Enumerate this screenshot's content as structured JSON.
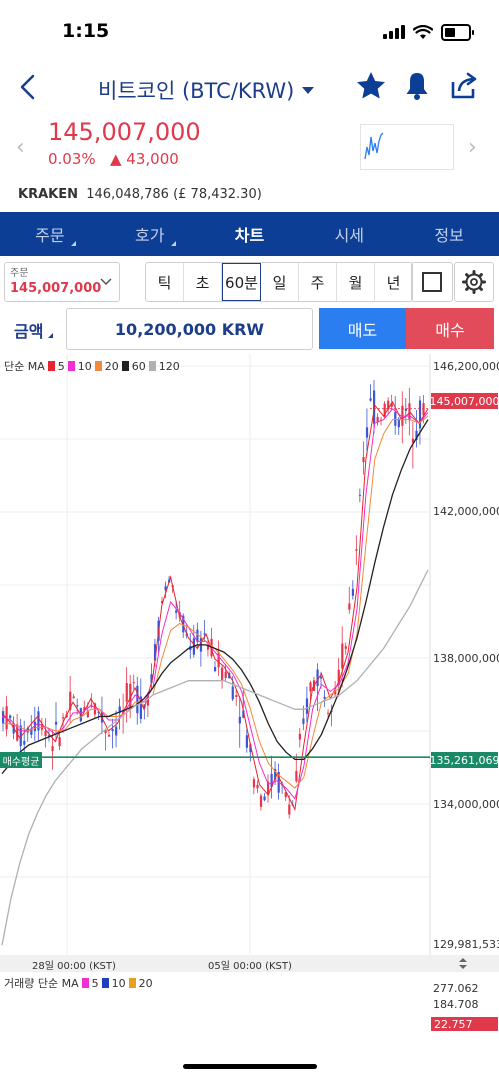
{
  "status": {
    "time": "1:15"
  },
  "header": {
    "title": "비트코인 (BTC/KRW)"
  },
  "price": {
    "current": "145,007,000",
    "change_pct": "0.03%",
    "change_amt": "▲ 43,000"
  },
  "exchange": {
    "name": "KRAKEN",
    "info": "146,048,786 (£ 78,432.30)"
  },
  "tabs": [
    "주문",
    "호가",
    "차트",
    "시세",
    "정보"
  ],
  "order": {
    "label": "주문",
    "value": "145,007,000"
  },
  "periods": [
    "틱",
    "초",
    "60분",
    "일",
    "주",
    "월",
    "년"
  ],
  "amount": {
    "label": "금액",
    "value": "10,200,000 KRW"
  },
  "buttons": {
    "sell": "매도",
    "buy": "매수"
  },
  "chart": {
    "legend_prefix": "단순 MA",
    "ma": [
      {
        "label": "5",
        "color": "#e8242d"
      },
      {
        "label": "10",
        "color": "#f02fd0"
      },
      {
        "label": "20",
        "color": "#f28a3a"
      },
      {
        "label": "60",
        "color": "#222222"
      },
      {
        "label": "120",
        "color": "#b0b0b0"
      }
    ],
    "y_labels": [
      "146,200,000",
      "142,000,000",
      "138,000,000",
      "134,000,000",
      "129,981,533"
    ],
    "price_tag": "145,007,000",
    "avg_label": "매수평균",
    "avg_value": "135,261,069",
    "x_labels": [
      "28일 00:00 (KST)",
      "05일 00:00 (KST)"
    ]
  },
  "volume": {
    "legend_prefix": "거래량 단순 MA",
    "ma": [
      {
        "label": "5",
        "color": "#f02fd0"
      },
      {
        "label": "10",
        "color": "#1f3fbf"
      },
      {
        "label": "20",
        "color": "#e6a020"
      }
    ],
    "y_labels": [
      "277.062",
      "184.708"
    ],
    "tag": "22.757"
  },
  "chart_data": {
    "type": "line",
    "title": "",
    "y_ticks": [
      146200000,
      142000000,
      138000000,
      134000000,
      129981533
    ],
    "ylim": [
      129981533,
      146200000
    ],
    "current_price": 145007000,
    "average_buy_price": 135261069,
    "series": [
      {
        "name": "5",
        "values": [
          136500000,
          136200000,
          135800000,
          136100000,
          136400000,
          136000000,
          135700000,
          136300000,
          136800000,
          136400000,
          136900000,
          136500000,
          136000000,
          136200000,
          136700000,
          137200000,
          136600000,
          137500000,
          139500000,
          140300000,
          139200000,
          138600000,
          138300000,
          138700000,
          138000000,
          137800000,
          137400000,
          136800000,
          135600000,
          134500000,
          134200000,
          134800000,
          134300000,
          133800000,
          135600000,
          137200000,
          137600000,
          136900000,
          137400000,
          138200000,
          140000000,
          143600000,
          145100000,
          144800000,
          145200000,
          144700000,
          144900000,
          144600000,
          145000000
        ]
      },
      {
        "name": "10",
        "values": [
          136400000,
          136300000,
          136000000,
          136000000,
          136200000,
          136100000,
          135900000,
          136100000,
          136500000,
          136500000,
          136700000,
          136600000,
          136300000,
          136300000,
          136600000,
          137000000,
          136800000,
          137200000,
          138700000,
          139600000,
          139300000,
          138900000,
          138500000,
          138500000,
          138200000,
          137900000,
          137600000,
          137100000,
          136100000,
          135100000,
          134500000,
          134600000,
          134400000,
          134100000,
          135000000,
          136600000,
          137300000,
          137100000,
          137300000,
          137900000,
          139400000,
          142600000,
          144600000,
          144700000,
          145000000,
          144800000,
          144800000,
          144600000,
          144900000
        ]
      },
      {
        "name": "20",
        "values": [
          136200000,
          136200000,
          136100000,
          136000000,
          136100000,
          136100000,
          136000000,
          136000000,
          136300000,
          136400000,
          136600000,
          136600000,
          136400000,
          136400000,
          136500000,
          136800000,
          136800000,
          137000000,
          138000000,
          138800000,
          139000000,
          138900000,
          138700000,
          138500000,
          138300000,
          138000000,
          137700000,
          137300000,
          136600000,
          135700000,
          135100000,
          134800000,
          134600000,
          134400000,
          134700000,
          135800000,
          136800000,
          137000000,
          137200000,
          137600000,
          138700000,
          141200000,
          143600000,
          144300000,
          144700000,
          144700000,
          144700000,
          144600000,
          144800000
        ]
      },
      {
        "name": "60",
        "values": [
          134800000,
          135100000,
          135400000,
          135600000,
          135700000,
          135800000,
          135900000,
          136000000,
          136100000,
          136200000,
          136300000,
          136400000,
          136400000,
          136500000,
          136600000,
          136700000,
          136900000,
          137200000,
          137600000,
          137900000,
          138100000,
          138300000,
          138400000,
          138400000,
          138300000,
          138200000,
          138000000,
          137700000,
          137300000,
          136800000,
          136200000,
          135700000,
          135400000,
          135200000,
          135200000,
          135500000,
          135900000,
          136500000,
          137100000,
          137800000,
          138600000,
          139600000,
          140700000,
          141700000,
          142600000,
          143300000,
          143900000,
          144300000,
          144700000
        ]
      },
      {
        "name": "120",
        "values": [
          130000000,
          131300000,
          132300000,
          133100000,
          133700000,
          134200000,
          134600000,
          134900000,
          135200000,
          135500000,
          135700000,
          135900000,
          136100000,
          136300000,
          136500000,
          136700000,
          136800000,
          137000000,
          137100000,
          137200000,
          137300000,
          137400000,
          137400000,
          137400000,
          137400000,
          137400000,
          137300000,
          137200000,
          137100000,
          137000000,
          136900000,
          136800000,
          136700000,
          136600000,
          136600000,
          136700000,
          136800000,
          136900000,
          137000000,
          137200000,
          137400000,
          137700000,
          138000000,
          138300000,
          138700000,
          139100000,
          139500000,
          140000000,
          140500000
        ]
      }
    ]
  }
}
